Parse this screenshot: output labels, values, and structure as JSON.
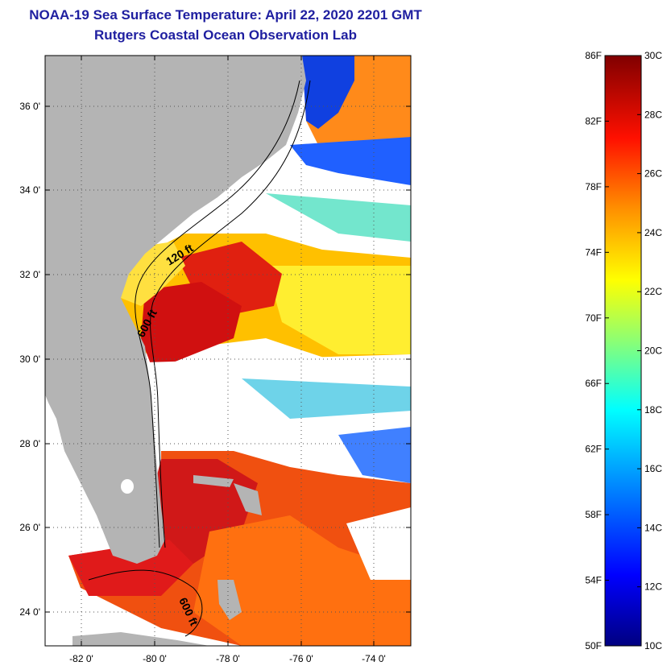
{
  "title": "NOAA-19 Sea Surface Temperature:  April 22, 2020 2201 GMT",
  "subtitle": "Rutgers Coastal Ocean Observation Lab",
  "map": {
    "lat_range": [
      23,
      37
    ],
    "lon_range": [
      -83,
      -73
    ],
    "lat_ticks": [
      {
        "value": 24,
        "label": "24 0'"
      },
      {
        "value": 26,
        "label": "26 0'"
      },
      {
        "value": 28,
        "label": "28 0'"
      },
      {
        "value": 30,
        "label": "30 0'"
      },
      {
        "value": 32,
        "label": "32 0'"
      },
      {
        "value": 34,
        "label": "34 0'"
      },
      {
        "value": 36,
        "label": "36 0'"
      }
    ],
    "lon_ticks": [
      {
        "value": -82,
        "label": "-82 0'"
      },
      {
        "value": -80,
        "label": "-80 0'"
      },
      {
        "value": -78,
        "label": "-78 0'"
      },
      {
        "value": -76,
        "label": "-76 0'"
      },
      {
        "value": -74,
        "label": "-74 0'"
      }
    ],
    "contour_labels": {
      "c120": "120 ft",
      "c600a": "600 ft",
      "c600b": "600 ft"
    },
    "colors": {
      "land": "#b4b4b4",
      "cloud": "#ffffff",
      "gridline": "#555555"
    }
  },
  "colorbar": {
    "min_c": 10,
    "max_c": 30,
    "fahrenheit_labels": [
      "86F",
      "82F",
      "78F",
      "74F",
      "70F",
      "66F",
      "62F",
      "58F",
      "54F",
      "50F"
    ],
    "celsius_labels": [
      "30C",
      "28C",
      "26C",
      "24C",
      "22C",
      "20C",
      "18C",
      "16C",
      "14C",
      "12C",
      "10C"
    ],
    "gradient": [
      "#000080",
      "#0000ff",
      "#0080ff",
      "#00ffff",
      "#80ff80",
      "#ffff00",
      "#ff8000",
      "#ff0000",
      "#800000"
    ]
  }
}
